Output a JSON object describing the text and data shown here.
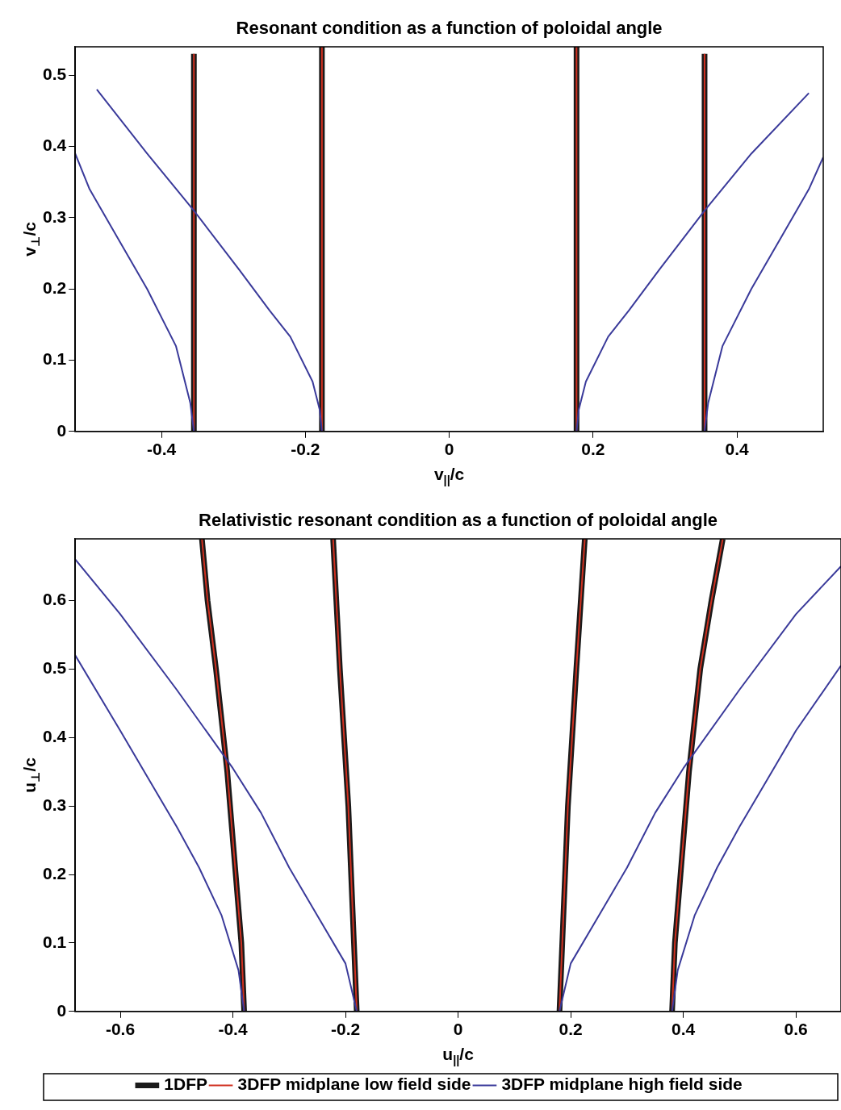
{
  "chart_data": [
    {
      "type": "line",
      "title": "Resonant condition as a function of poloidal angle",
      "xlabel": "v$_{||}$/c",
      "ylabel": "v$_{⊥}$/c",
      "xlim": [
        -0.52,
        0.52
      ],
      "ylim": [
        0,
        0.54
      ],
      "xticks": [
        -0.4,
        -0.2,
        0,
        0.2,
        0.4
      ],
      "yticks": [
        0,
        0.1,
        0.2,
        0.3,
        0.4,
        0.5
      ],
      "grid": false,
      "legend": false,
      "series": [
        {
          "color": "#1a1a1a",
          "x": [
            -0.355,
            -0.355
          ],
          "values": [
            0,
            0.53
          ]
        },
        {
          "color": "#d03020",
          "x": [
            -0.355,
            -0.355
          ],
          "values": [
            0,
            0.53
          ]
        },
        {
          "color": "#1a1a1a",
          "x": [
            -0.177,
            -0.177
          ],
          "values": [
            0,
            0.54
          ]
        },
        {
          "color": "#d03020",
          "x": [
            -0.177,
            -0.177
          ],
          "values": [
            0,
            0.54
          ]
        },
        {
          "color": "#1a1a1a",
          "x": [
            0.177,
            0.177
          ],
          "values": [
            0,
            0.54
          ]
        },
        {
          "color": "#d03020",
          "x": [
            0.177,
            0.177
          ],
          "values": [
            0,
            0.54
          ]
        },
        {
          "color": "#1a1a1a",
          "x": [
            0.355,
            0.355
          ],
          "values": [
            0,
            0.53
          ]
        },
        {
          "color": "#d03020",
          "x": [
            0.355,
            0.355
          ],
          "values": [
            0,
            0.53
          ]
        },
        {
          "color": "#3a3a9a",
          "x": [
            -0.177,
            -0.18,
            -0.19,
            -0.221,
            -0.25,
            -0.292,
            -0.355,
            -0.42,
            -0.49
          ],
          "values": [
            0,
            0.03,
            0.07,
            0.133,
            0.17,
            0.227,
            0.31,
            0.39,
            0.48
          ]
        },
        {
          "color": "#3a3a9a",
          "x": [
            -0.355,
            -0.36,
            -0.38,
            -0.42,
            -0.46,
            -0.5,
            -0.52
          ],
          "values": [
            0,
            0.04,
            0.12,
            0.2,
            0.27,
            0.34,
            0.39
          ]
        },
        {
          "color": "#3a3a9a",
          "x": [
            0.177,
            0.18,
            0.19,
            0.221,
            0.25,
            0.292,
            0.355,
            0.42,
            0.5
          ],
          "values": [
            0,
            0.03,
            0.07,
            0.133,
            0.17,
            0.227,
            0.31,
            0.39,
            0.475
          ]
        },
        {
          "color": "#3a3a9a",
          "x": [
            0.355,
            0.36,
            0.38,
            0.42,
            0.46,
            0.5,
            0.52
          ],
          "values": [
            0,
            0.04,
            0.12,
            0.2,
            0.27,
            0.34,
            0.385
          ]
        }
      ]
    },
    {
      "type": "line",
      "title": "Relativistic resonant condition as a function of poloidal angle",
      "xlabel": "u$_{||}$/c",
      "ylabel": "u$_{⊥}$/c",
      "xlim": [
        -0.68,
        0.68
      ],
      "ylim": [
        0,
        0.69
      ],
      "xticks": [
        -0.6,
        -0.4,
        -0.2,
        0,
        0.2,
        0.4,
        0.6
      ],
      "yticks": [
        0,
        0.1,
        0.2,
        0.3,
        0.4,
        0.5,
        0.6
      ],
      "grid": false,
      "legend": "bottom",
      "series": [
        {
          "name": "1DFP",
          "color": "#1a1a1a",
          "x": [
            -0.38,
            -0.385,
            -0.395,
            -0.41,
            -0.43,
            -0.445,
            -0.455
          ],
          "values": [
            0,
            0.1,
            0.2,
            0.35,
            0.5,
            0.6,
            0.69
          ]
        },
        {
          "name": "3DFP midplane low field side",
          "color": "#d03020",
          "x": [
            -0.38,
            -0.385,
            -0.395,
            -0.41,
            -0.43,
            -0.445,
            -0.455
          ],
          "values": [
            0,
            0.1,
            0.2,
            0.35,
            0.5,
            0.6,
            0.69
          ]
        },
        {
          "color": "#1a1a1a",
          "x": [
            -0.18,
            -0.185,
            -0.195,
            -0.21,
            -0.222
          ],
          "values": [
            0,
            0.1,
            0.3,
            0.5,
            0.69
          ]
        },
        {
          "color": "#d03020",
          "x": [
            -0.18,
            -0.185,
            -0.195,
            -0.21,
            -0.222
          ],
          "values": [
            0,
            0.1,
            0.3,
            0.5,
            0.69
          ]
        },
        {
          "color": "#1a1a1a",
          "x": [
            0.18,
            0.185,
            0.195,
            0.21,
            0.225
          ],
          "values": [
            0,
            0.1,
            0.3,
            0.5,
            0.69
          ]
        },
        {
          "color": "#d03020",
          "x": [
            0.18,
            0.185,
            0.195,
            0.21,
            0.225
          ],
          "values": [
            0,
            0.1,
            0.3,
            0.5,
            0.69
          ]
        },
        {
          "color": "#1a1a1a",
          "x": [
            0.38,
            0.385,
            0.395,
            0.41,
            0.43,
            0.45,
            0.47
          ],
          "values": [
            0,
            0.1,
            0.2,
            0.35,
            0.5,
            0.6,
            0.69
          ]
        },
        {
          "color": "#d03020",
          "x": [
            0.38,
            0.385,
            0.395,
            0.41,
            0.43,
            0.45,
            0.47
          ],
          "values": [
            0,
            0.1,
            0.2,
            0.35,
            0.5,
            0.6,
            0.69
          ]
        },
        {
          "name": "3DFP midplane high field side",
          "color": "#3a3a9a",
          "x": [
            -0.18,
            -0.2,
            -0.25,
            -0.3,
            -0.35,
            -0.4,
            -0.5,
            -0.6,
            -0.68
          ],
          "values": [
            0,
            0.07,
            0.14,
            0.21,
            0.29,
            0.355,
            0.47,
            0.58,
            0.66
          ]
        },
        {
          "color": "#3a3a9a",
          "x": [
            -0.38,
            -0.39,
            -0.42,
            -0.46,
            -0.5,
            -0.55,
            -0.6,
            -0.68
          ],
          "values": [
            0,
            0.06,
            0.14,
            0.21,
            0.27,
            0.34,
            0.41,
            0.52
          ]
        },
        {
          "color": "#3a3a9a",
          "x": [
            0.18,
            0.2,
            0.25,
            0.3,
            0.35,
            0.4,
            0.5,
            0.6,
            0.68
          ],
          "values": [
            0,
            0.07,
            0.14,
            0.21,
            0.29,
            0.355,
            0.47,
            0.58,
            0.65
          ]
        },
        {
          "color": "#3a3a9a",
          "x": [
            0.38,
            0.39,
            0.42,
            0.46,
            0.5,
            0.55,
            0.6,
            0.68
          ],
          "values": [
            0,
            0.06,
            0.14,
            0.21,
            0.27,
            0.34,
            0.41,
            0.505
          ]
        }
      ]
    }
  ]
}
